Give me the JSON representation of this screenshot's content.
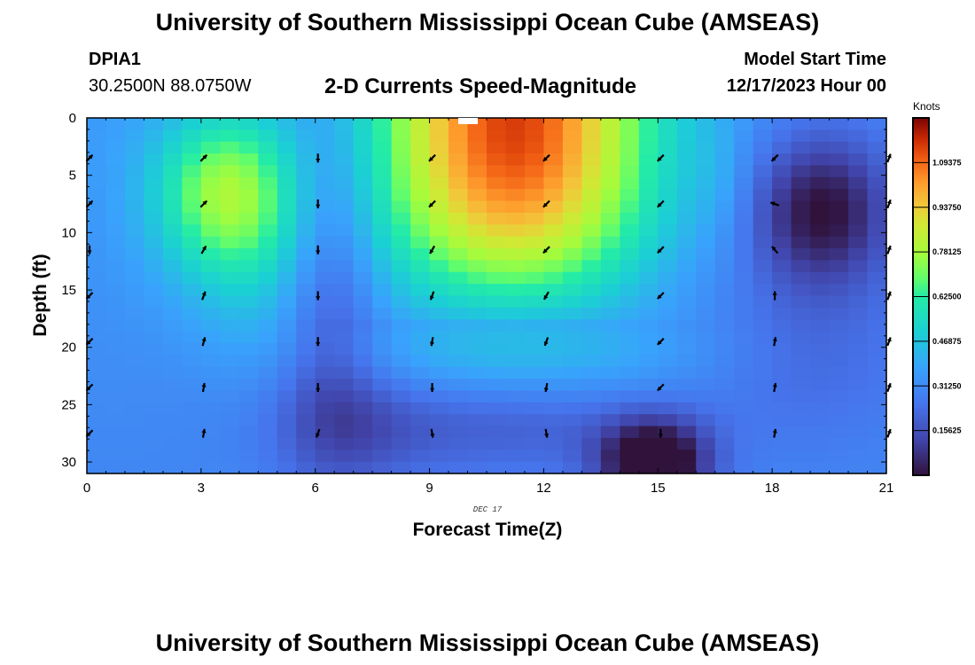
{
  "header": {
    "title_top": "University of Southern Mississippi Ocean Cube (AMSEAS)",
    "station": "DPIA1",
    "coords": "30.2500N  88.0750W",
    "model_start_label": "Model Start Time",
    "model_start_value": "12/17/2023 Hour 00"
  },
  "footer": {
    "title_bottom": "University of Southern Mississippi Ocean Cube (AMSEAS)"
  },
  "chart_data": {
    "type": "heatmap",
    "title": "2-D Currents Speed-Magnitude",
    "xlabel": "Forecast Time(Z)",
    "ylabel": "Depth (ft)",
    "date_label": "DEC 17",
    "x_ticks": [
      0,
      3,
      6,
      9,
      12,
      15,
      18,
      21
    ],
    "y_ticks": [
      0,
      5,
      10,
      15,
      20,
      25,
      30
    ],
    "xlim": [
      0,
      21
    ],
    "ylim": [
      0,
      31
    ],
    "colorbar": {
      "label": "Knots",
      "ticks": [
        "1.09375",
        "0.93750",
        "0.78125",
        "0.62500",
        "0.46875",
        "0.31250",
        "0.15625"
      ],
      "tick_values": [
        1.09375,
        0.9375,
        0.78125,
        0.625,
        0.46875,
        0.3125,
        0.15625
      ],
      "range": [
        0,
        1.25
      ]
    },
    "speed_model": {
      "description": "Approximate current speed (knots) read from heatmap colors",
      "bands": [
        {
          "depth_from": 0,
          "depth_to": 12,
          "hour_from": 7.5,
          "hour_to": 15.5,
          "peak": 1.15
        },
        {
          "depth_from": 2,
          "depth_to": 10,
          "hour_from": 2.5,
          "hour_to": 5.5,
          "peak": 0.68
        },
        {
          "depth_from": 5,
          "depth_to": 12,
          "hour_from": 18.5,
          "hour_to": 20.5,
          "low": 0.03
        },
        {
          "depth_from": 26,
          "depth_to": 31,
          "hour_from": 14,
          "hour_to": 16,
          "low": 0.0
        }
      ]
    },
    "vector_hours": [
      0,
      3,
      6,
      9,
      12,
      15,
      18,
      21
    ],
    "vector_depths": [
      3.5,
      7.5,
      11.5,
      15.5,
      19.5,
      23.5,
      27.5
    ],
    "vector_directions_deg": [
      [
        45,
        45,
        180,
        225,
        225,
        225,
        225
      ],
      [
        45,
        45,
        30,
        20,
        15,
        10,
        10
      ],
      [
        180,
        180,
        180,
        180,
        180,
        180,
        200
      ],
      [
        225,
        225,
        210,
        200,
        190,
        180,
        170
      ],
      [
        225,
        225,
        225,
        210,
        200,
        190,
        170
      ],
      [
        225,
        225,
        225,
        225,
        225,
        225,
        180
      ],
      [
        225,
        290,
        320,
        0,
        10,
        10,
        10
      ],
      [
        20,
        20,
        20,
        20,
        20,
        20,
        20
      ]
    ]
  }
}
